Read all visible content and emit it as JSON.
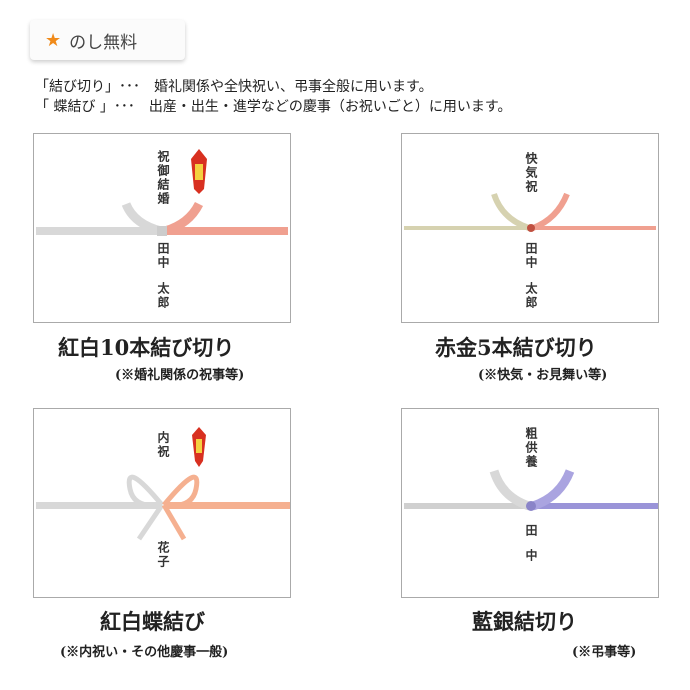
{
  "badge": {
    "icon": "star-icon",
    "label": "のし無料",
    "icon_color": "#f08a1a"
  },
  "descriptions": [
    "「結び切り」･･･　婚礼関係や全快祝い、弔事全般に用います。",
    "「 蝶結び 」･･･　出産・出生・進学などの慶事（お祝いごと）に用います。"
  ],
  "cards": [
    {
      "top_text": "祝御結婚",
      "name1": "田中",
      "name2": "太郎",
      "title": "紅白10本結び切り",
      "note": "(※婚礼関係の祝事等)",
      "left_color": "#d8d8d8",
      "right_color": "#f0a090"
    },
    {
      "top_text": "快気祝",
      "name1": "田中",
      "name2": "太郎",
      "title": "赤金5本結び切り",
      "note": "(※快気・お見舞い等)",
      "left_color": "#d6d2b0",
      "right_color": "#f0a090"
    },
    {
      "top_text": "内祝",
      "name1": "花子",
      "name2": "",
      "title": "紅白蝶結び",
      "note": "(※内祝い・その他慶事一般)",
      "left_color": "#d8d8d8",
      "right_color": "#f5b090"
    },
    {
      "top_text": "粗供養",
      "name1": "田",
      "name2": "中",
      "title": "藍銀結切り",
      "note": "(※弔事等)",
      "left_color": "#d0d0d0",
      "right_color": "#9a94d8"
    }
  ]
}
